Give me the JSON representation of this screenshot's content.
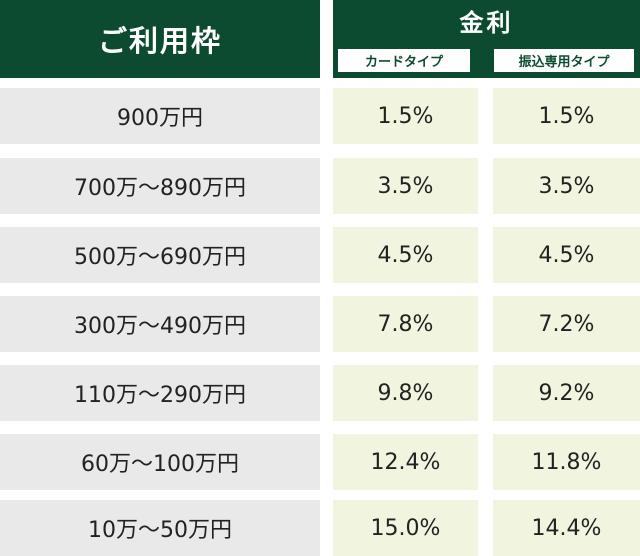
{
  "header": {
    "limit_label": "ご利用枠",
    "rate_label": "金利",
    "card_type_label": "カードタイプ",
    "transfer_type_label": "振込専用タイプ"
  },
  "rows": [
    {
      "limit": "900万円",
      "card": "1.5%",
      "transfer": "1.5%"
    },
    {
      "limit": "700万～890万円",
      "card": "3.5%",
      "transfer": "3.5%"
    },
    {
      "limit": "500万～690万円",
      "card": "4.5%",
      "transfer": "4.5%"
    },
    {
      "limit": "300万～490万円",
      "card": "7.8%",
      "transfer": "7.2%"
    },
    {
      "limit": "110万～290万円",
      "card": "9.8%",
      "transfer": "9.2%"
    },
    {
      "limit": "60万～100万円",
      "card": "12.4%",
      "transfer": "11.8%"
    },
    {
      "limit": "10万～50万円",
      "card": "15.0%",
      "transfer": "14.4%"
    }
  ],
  "colors": {
    "header_bg": "#0c4b2f",
    "limit_bg": "#e9e9e9",
    "rate_bg": "#f1f5df"
  }
}
